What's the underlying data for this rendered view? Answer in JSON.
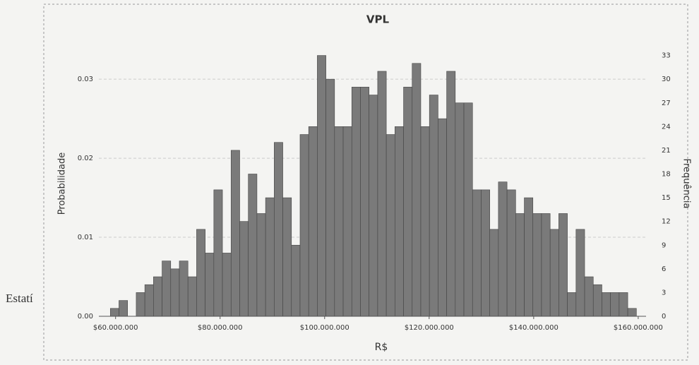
{
  "chart_data": {
    "type": "histogram",
    "title": "VPL",
    "side_text": "Estatí",
    "x_label": "R$",
    "y_label": "Probabilidade",
    "y2_label": "Frequência",
    "bins": [
      59000000,
      60650000,
      62300000,
      63950000,
      65600000,
      67250000,
      68900000,
      70550000,
      72200000,
      73850000,
      75500000,
      77150000,
      78800000,
      80450000,
      82100000,
      83750000,
      85400000,
      87050000,
      88700000,
      90350000,
      92000000,
      93650000,
      95300000,
      96950000,
      98600000,
      100250000,
      101900000,
      103550000,
      105200000,
      106850000,
      108500000,
      110150000,
      111800000,
      113450000,
      115100000,
      116750000,
      118400000,
      120050000,
      121700000,
      123350000,
      125000000,
      126650000,
      128300000,
      129950000,
      131600000,
      133250000,
      134900000,
      136550000,
      138200000,
      139850000,
      141500000,
      143150000,
      144800000,
      146450000,
      148100000,
      149750000,
      151400000,
      153050000,
      154700000,
      156350000,
      158000000,
      159650000
    ],
    "series": [
      {
        "color": "#7a7a7a",
        "axis": "y2",
        "values": [
          1,
          2,
          0,
          3,
          4,
          5,
          7,
          6,
          7,
          5,
          11,
          8,
          16,
          8,
          21,
          12,
          18,
          13,
          15,
          22,
          15,
          9,
          23,
          24,
          33,
          30,
          24,
          24,
          29,
          29,
          28,
          31,
          23,
          24,
          29,
          32,
          24,
          28,
          25,
          31,
          27,
          27,
          16,
          16,
          11,
          17,
          16,
          13,
          15,
          13,
          13,
          11,
          13,
          3,
          11,
          5,
          4,
          3,
          3,
          3,
          1
        ]
      }
    ],
    "xlim": [
      56800000,
      161500000
    ],
    "xticks": [
      {
        "value": 60000000,
        "label": "$60.000.000"
      },
      {
        "value": 80000000,
        "label": "$80.000.000"
      },
      {
        "value": 100000000,
        "label": "$100.000.000"
      },
      {
        "value": 120000000,
        "label": "$120.000.000"
      },
      {
        "value": 140000000,
        "label": "$140.000.000"
      },
      {
        "value": 160000000,
        "label": "$160.000.000"
      }
    ],
    "ylim": [
      0,
      0.036
    ],
    "yticks": [
      {
        "value": 0,
        "label": "0.00"
      },
      0.01,
      0.02,
      0.03
    ],
    "y2lim": [
      0,
      36
    ],
    "y2ticks": [
      0,
      3,
      6,
      9,
      12,
      15,
      18,
      21,
      24,
      27,
      30,
      33
    ],
    "grid": true
  }
}
